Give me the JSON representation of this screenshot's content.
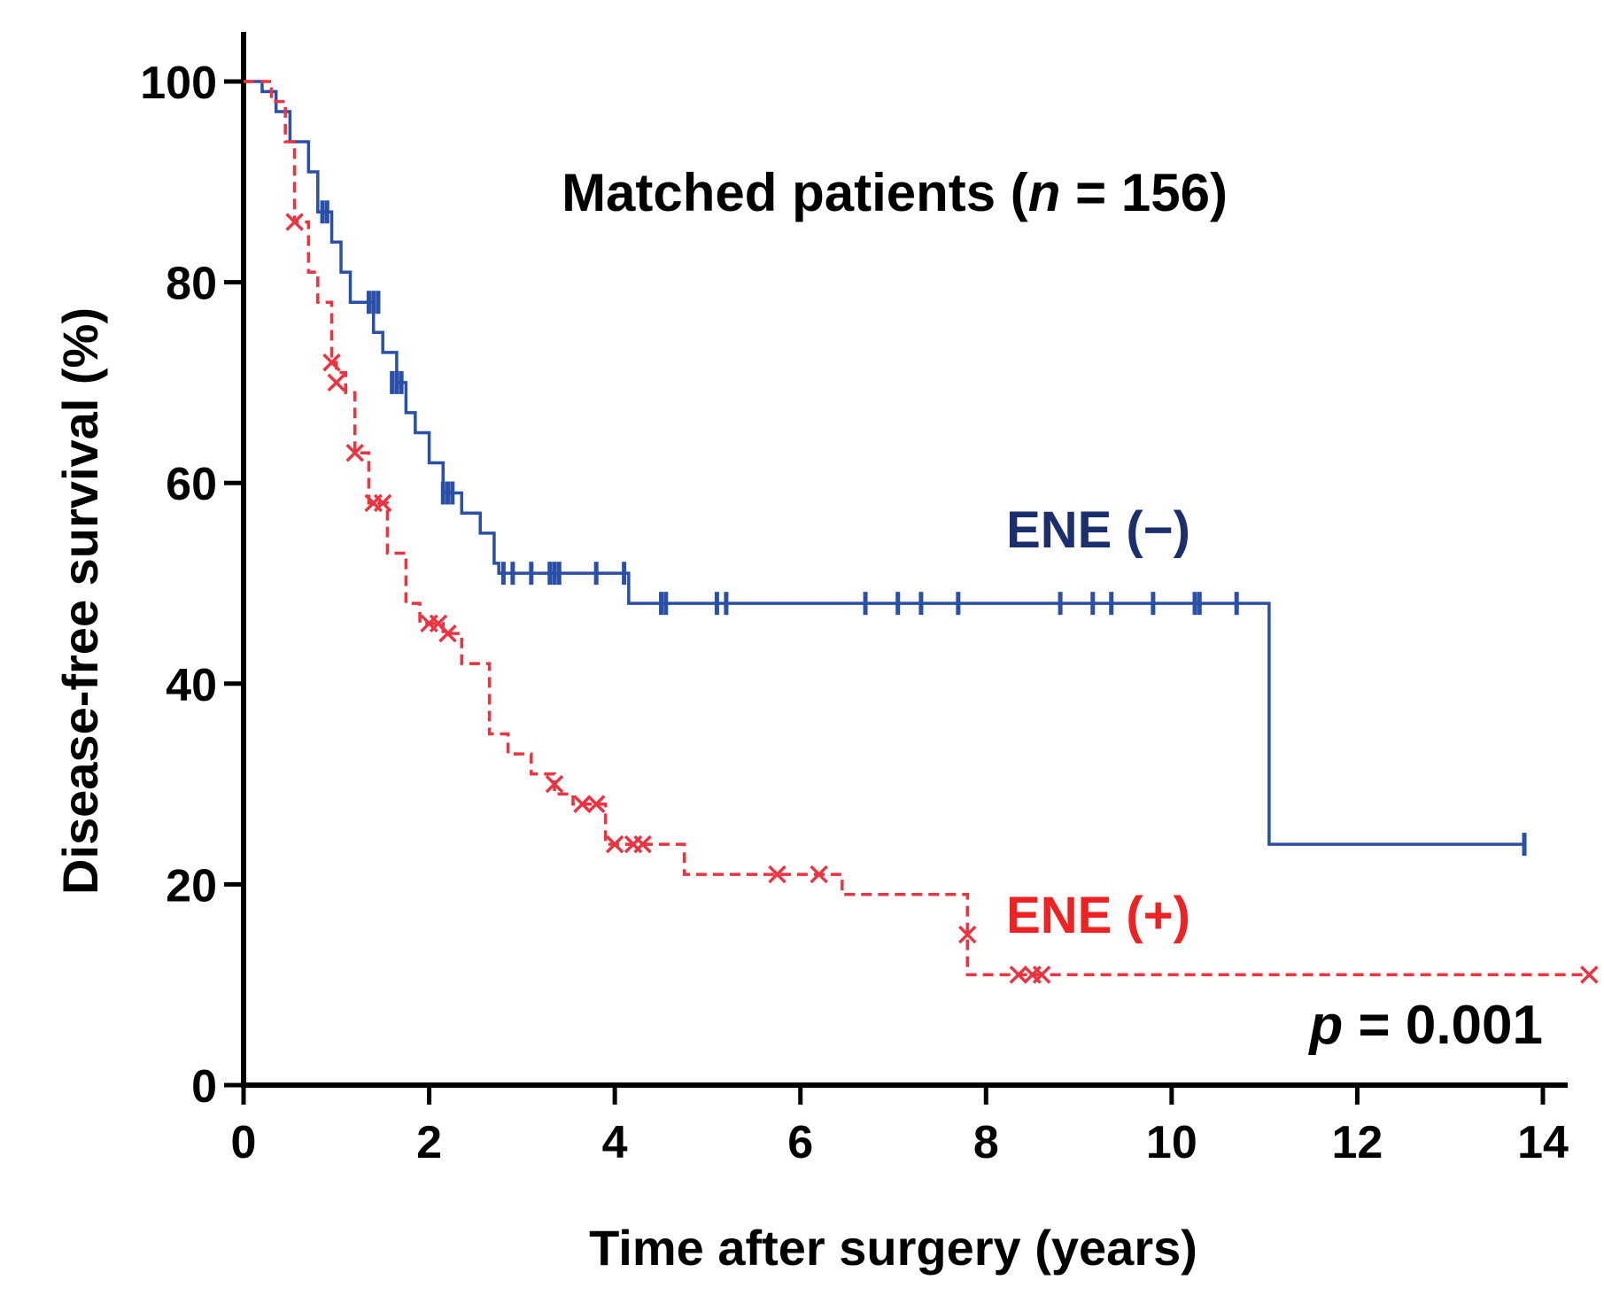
{
  "chart_data": {
    "type": "line",
    "subtype": "kaplan-meier",
    "title": "Matched patients (",
    "title_italic": "n",
    "title_rest": " = 156)",
    "xlabel": "Time after surgery (years)",
    "ylabel": "Disease-free survival (%)",
    "xlim": [
      0,
      14.7
    ],
    "ylim": [
      0,
      105
    ],
    "x_ticks": [
      0,
      2,
      4,
      6,
      8,
      10,
      12,
      14
    ],
    "y_ticks": [
      0,
      20,
      40,
      60,
      80,
      100
    ],
    "x_tick_labels": [
      "0",
      "2",
      "4",
      "6",
      "8",
      "10",
      "12",
      "14"
    ],
    "y_tick_labels": [
      "0",
      "20",
      "40",
      "60",
      "80",
      "100"
    ],
    "p_value_italic": "p",
    "p_value_rest": " = 0.001",
    "series": [
      {
        "name": "ENE (−)",
        "color": "#2a4fa8",
        "label_color": "#1b2f6e",
        "line_style": "solid",
        "censor_marker": "tick",
        "steps": [
          [
            0,
            100
          ],
          [
            0.2,
            99
          ],
          [
            0.35,
            97
          ],
          [
            0.5,
            94
          ],
          [
            0.7,
            91
          ],
          [
            0.8,
            87
          ],
          [
            0.95,
            84
          ],
          [
            1.05,
            81
          ],
          [
            1.15,
            78
          ],
          [
            1.4,
            75
          ],
          [
            1.5,
            73
          ],
          [
            1.65,
            70
          ],
          [
            1.75,
            67
          ],
          [
            1.85,
            65
          ],
          [
            2.0,
            62
          ],
          [
            2.15,
            59
          ],
          [
            2.35,
            57
          ],
          [
            2.55,
            55
          ],
          [
            2.7,
            52
          ],
          [
            2.75,
            51
          ],
          [
            4.15,
            48
          ],
          [
            11.05,
            48
          ],
          [
            11.05,
            24
          ],
          [
            13.8,
            24
          ]
        ],
        "censored": [
          [
            0.85,
            87
          ],
          [
            0.9,
            87
          ],
          [
            1.35,
            78
          ],
          [
            1.4,
            78
          ],
          [
            1.45,
            78
          ],
          [
            1.6,
            70
          ],
          [
            1.65,
            70
          ],
          [
            1.7,
            70
          ],
          [
            2.15,
            59
          ],
          [
            2.2,
            59
          ],
          [
            2.25,
            59
          ],
          [
            2.8,
            51
          ],
          [
            2.9,
            51
          ],
          [
            3.1,
            51
          ],
          [
            3.3,
            51
          ],
          [
            3.35,
            51
          ],
          [
            3.4,
            51
          ],
          [
            3.8,
            51
          ],
          [
            4.1,
            51
          ],
          [
            4.5,
            48
          ],
          [
            4.55,
            48
          ],
          [
            5.1,
            48
          ],
          [
            5.2,
            48
          ],
          [
            6.7,
            48
          ],
          [
            7.05,
            48
          ],
          [
            7.3,
            48
          ],
          [
            7.7,
            48
          ],
          [
            8.8,
            48
          ],
          [
            9.15,
            48
          ],
          [
            9.35,
            48
          ],
          [
            9.8,
            48
          ],
          [
            10.25,
            48
          ],
          [
            10.3,
            48
          ],
          [
            10.7,
            48
          ],
          [
            13.8,
            24
          ]
        ],
        "end_x": 13.8
      },
      {
        "name": "ENE (+)",
        "color": "#ee3340",
        "label_color": "#ee2222",
        "line_style": "dashed",
        "censor_marker": "x",
        "steps": [
          [
            0,
            100
          ],
          [
            0.3,
            98
          ],
          [
            0.45,
            94
          ],
          [
            0.55,
            86
          ],
          [
            0.7,
            81
          ],
          [
            0.8,
            78
          ],
          [
            0.95,
            72
          ],
          [
            1.0,
            71
          ],
          [
            1.1,
            69
          ],
          [
            1.2,
            63
          ],
          [
            1.35,
            58
          ],
          [
            1.55,
            53
          ],
          [
            1.75,
            48
          ],
          [
            1.9,
            46
          ],
          [
            2.15,
            45
          ],
          [
            2.35,
            42
          ],
          [
            2.65,
            39
          ],
          [
            2.65,
            35
          ],
          [
            2.85,
            33
          ],
          [
            3.1,
            31
          ],
          [
            3.35,
            29
          ],
          [
            3.55,
            28
          ],
          [
            3.9,
            24
          ],
          [
            4.45,
            24
          ],
          [
            4.75,
            21
          ],
          [
            6.45,
            19
          ],
          [
            7.8,
            11
          ],
          [
            14.5,
            11
          ]
        ],
        "censored": [
          [
            0.55,
            86
          ],
          [
            0.95,
            72
          ],
          [
            1.0,
            70
          ],
          [
            1.2,
            63
          ],
          [
            1.4,
            58
          ],
          [
            1.5,
            58
          ],
          [
            2.0,
            46
          ],
          [
            2.1,
            46
          ],
          [
            2.2,
            45
          ],
          [
            3.35,
            30
          ],
          [
            3.65,
            28
          ],
          [
            3.8,
            28
          ],
          [
            4.0,
            24
          ],
          [
            4.2,
            24
          ],
          [
            4.3,
            24
          ],
          [
            5.75,
            21
          ],
          [
            6.2,
            21
          ],
          [
            7.8,
            15
          ],
          [
            8.35,
            11
          ],
          [
            8.5,
            11
          ],
          [
            8.6,
            11
          ],
          [
            14.5,
            11
          ]
        ],
        "end_x": 14.5
      }
    ]
  }
}
